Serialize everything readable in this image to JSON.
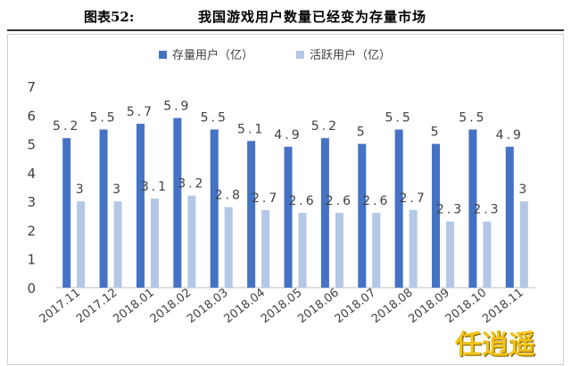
{
  "header": {
    "figure_label": "图表52:",
    "title": "我国游戏用户数量已经变为存量市场"
  },
  "watermark": "任逍遥",
  "colors": {
    "series_stock": "#4472c4",
    "series_active": "#b4c7e7",
    "axis": "#bfbfbf",
    "text": "#404040"
  },
  "chart_data": {
    "type": "bar",
    "categories": [
      "2017.11",
      "2017.12",
      "2018.01",
      "2018.02",
      "2018.03",
      "2018.04",
      "2018.05",
      "2018.06",
      "2018.07",
      "2018.08",
      "2018.09",
      "2018.10",
      "2018.11"
    ],
    "series": [
      {
        "name": "存量用户（亿）",
        "values": [
          5.2,
          5.5,
          5.7,
          5.9,
          5.5,
          5.1,
          4.9,
          5.2,
          5,
          5.5,
          5,
          5.5,
          4.9
        ]
      },
      {
        "name": "活跃用户（亿）",
        "values": [
          3,
          3,
          3.1,
          3.2,
          2.8,
          2.7,
          2.6,
          2.6,
          2.6,
          2.7,
          2.3,
          2.3,
          3
        ]
      }
    ],
    "ylim": [
      0,
      7
    ],
    "yticks": [
      0,
      1,
      2,
      3,
      4,
      5,
      6,
      7
    ],
    "grid": false,
    "legend": "top"
  }
}
